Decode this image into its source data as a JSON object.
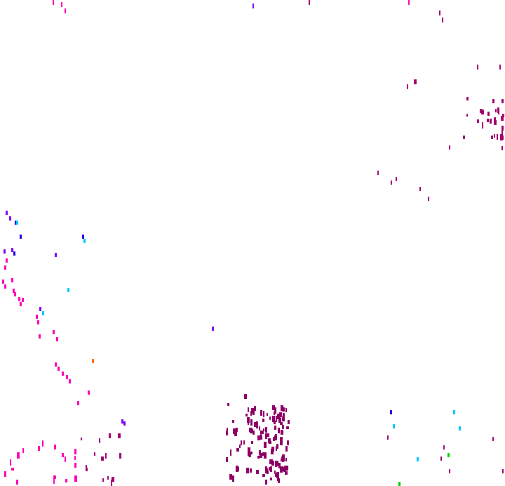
{
  "background": "#ffffff",
  "palette": {
    "magenta": "#ff00b4",
    "dark_magenta": "#8c0064",
    "crimson_purple": "#a0006e",
    "violet": "#7a00ff",
    "blue": "#2000e0",
    "cyan": "#00c8ff",
    "orange": "#ff6400",
    "green": "#00d000"
  }
}
